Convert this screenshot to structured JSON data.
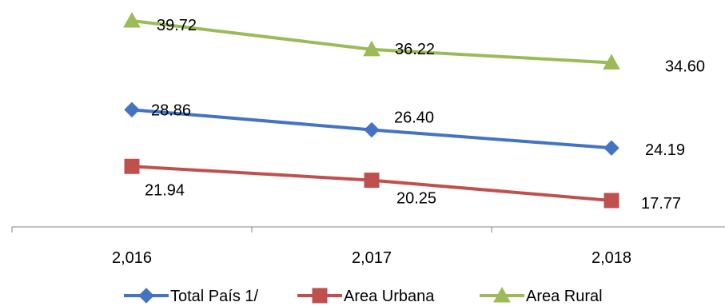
{
  "chart_data": {
    "type": "line",
    "categories": [
      "2,016",
      "2,017",
      "2,018"
    ],
    "series": [
      {
        "name": "Total País 1/",
        "values": [
          28.86,
          26.4,
          24.19
        ],
        "labels": [
          "28.86",
          "26.40",
          "24.19"
        ],
        "color": "#4472C4",
        "marker": "diamond"
      },
      {
        "name": "Area Urbana",
        "values": [
          21.94,
          20.25,
          17.77
        ],
        "labels": [
          "21.94",
          "20.25",
          "17.77"
        ],
        "color": "#C0504D",
        "marker": "square"
      },
      {
        "name": "Area Rural",
        "values": [
          39.72,
          36.22,
          34.6
        ],
        "labels": [
          "39.72",
          "36.22",
          "34.60"
        ],
        "color": "#9BBB59",
        "marker": "triangle"
      }
    ],
    "title": "",
    "xlabel": "",
    "ylabel": "",
    "y_axis_visible": false,
    "grid": false,
    "legend_position": "bottom"
  }
}
